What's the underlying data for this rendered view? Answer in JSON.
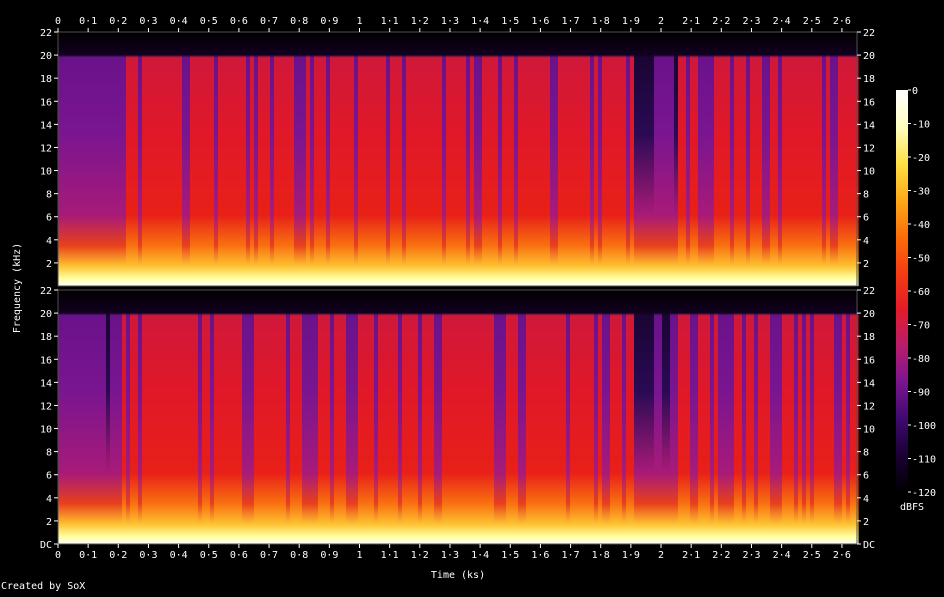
{
  "chart_data": {
    "type": "heatmap",
    "chart_kind": "spectrogram",
    "xlabel": "Time (ks)",
    "ylabel": "Frequency (kHz)",
    "colorbar_label": "dBFS",
    "credit": "Created by SoX",
    "x_ticks": [
      "0",
      "0·1",
      "0·2",
      "0·3",
      "0·4",
      "0·5",
      "0·6",
      "0·7",
      "0·8",
      "0·9",
      "1",
      "1·1",
      "1·2",
      "1·3",
      "1·4",
      "1·5",
      "1·6",
      "1·7",
      "1·8",
      "1·9",
      "2",
      "2·1",
      "2·2",
      "2·3",
      "2·4",
      "2·5",
      "2·6"
    ],
    "x_tick_values": [
      0,
      0.1,
      0.2,
      0.3,
      0.4,
      0.5,
      0.6,
      0.7,
      0.8,
      0.9,
      1.0,
      1.1,
      1.2,
      1.3,
      1.4,
      1.5,
      1.6,
      1.7,
      1.8,
      1.9,
      2.0,
      2.1,
      2.2,
      2.3,
      2.4,
      2.5,
      2.6
    ],
    "xlim": [
      0,
      2.65
    ],
    "y_ticks_top": [
      "22",
      "20",
      "18",
      "16",
      "14",
      "12",
      "10",
      "8",
      "6",
      "4",
      "2"
    ],
    "y_ticks_bottom": [
      "22",
      "20",
      "18",
      "16",
      "14",
      "12",
      "10",
      "8",
      "6",
      "4",
      "2",
      "DC"
    ],
    "ylim": [
      0,
      22
    ],
    "colorbar_ticks": [
      "0",
      "-10",
      "-20",
      "-30",
      "-40",
      "-50",
      "-60",
      "-70",
      "-80",
      "-90",
      "-100",
      "-110",
      "-120"
    ],
    "colorbar_range": [
      -120,
      0
    ],
    "channels": [
      {
        "channel": 1
      },
      {
        "channel": 2
      }
    ],
    "colors": {
      "background": "#000000",
      "colormap": [
        "#000000",
        "#1a0033",
        "#3d0a6e",
        "#7a1590",
        "#b81d6c",
        "#e31b2a",
        "#f53c12",
        "#fb6e0a",
        "#fdaa18",
        "#ffe045",
        "#ffffc0",
        "#ffffff"
      ]
    }
  }
}
